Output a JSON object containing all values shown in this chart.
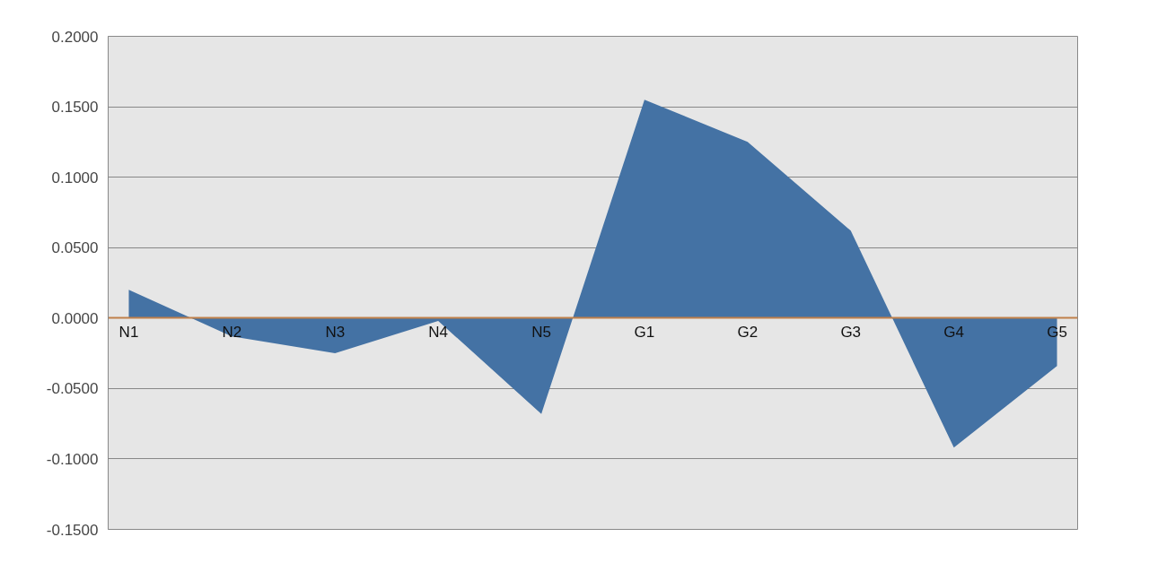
{
  "chart_data": {
    "type": "area",
    "categories": [
      "N1",
      "N2",
      "N3",
      "N4",
      "N5",
      "G1",
      "G2",
      "G3",
      "G4",
      "G5"
    ],
    "series": [
      {
        "color": "#4472a4",
        "values": [
          0.02,
          -0.013,
          -0.025,
          -0.002,
          -0.068,
          0.155,
          0.125,
          0.062,
          -0.092,
          -0.034
        ]
      }
    ],
    "ylim": [
      -0.15,
      0.2
    ],
    "yticks": [
      {
        "value": -0.15,
        "label": "-0.1500"
      },
      {
        "value": -0.1,
        "label": "-0.1000"
      },
      {
        "value": -0.05,
        "label": "-0.0500"
      },
      {
        "value": 0,
        "label": "0.0000"
      },
      {
        "value": 0.05,
        "label": "0.0500"
      },
      {
        "value": 0.1,
        "label": "0.1000"
      },
      {
        "value": 0.15,
        "label": "0.1500"
      },
      {
        "value": 0.2,
        "label": "0.2000"
      }
    ],
    "grid": "y"
  }
}
